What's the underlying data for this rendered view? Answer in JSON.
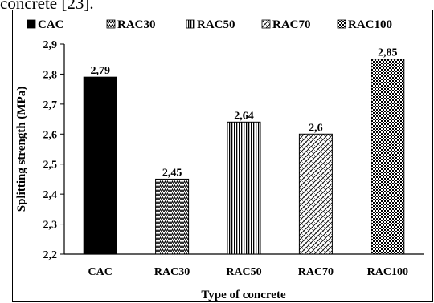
{
  "header_text": "concrete [23].",
  "chart_data": {
    "type": "bar",
    "categories": [
      "CAC",
      "RAC30",
      "RAC50",
      "RAC70",
      "RAC100"
    ],
    "values": [
      2.79,
      2.45,
      2.64,
      2.6,
      2.85
    ],
    "data_labels": [
      "2,79",
      "2,45",
      "2,64",
      "2,6",
      "2,85"
    ],
    "xlabel": "Type of concrete",
    "ylabel": "Splitting strength (MPa)",
    "ylim": [
      2.2,
      2.9
    ],
    "yticks": [
      "2,2",
      "2,3",
      "2,4",
      "2,5",
      "2,6",
      "2,7",
      "2,8",
      "2,9"
    ],
    "legend": {
      "placement": "top",
      "entries": [
        "CAC",
        "RAC30",
        "RAC50",
        "RAC70",
        "RAC100"
      ]
    },
    "patterns": [
      "solid-black",
      "zigzag",
      "vertical-lines",
      "diagonal-crosshatch",
      "dots"
    ],
    "grid": false
  }
}
